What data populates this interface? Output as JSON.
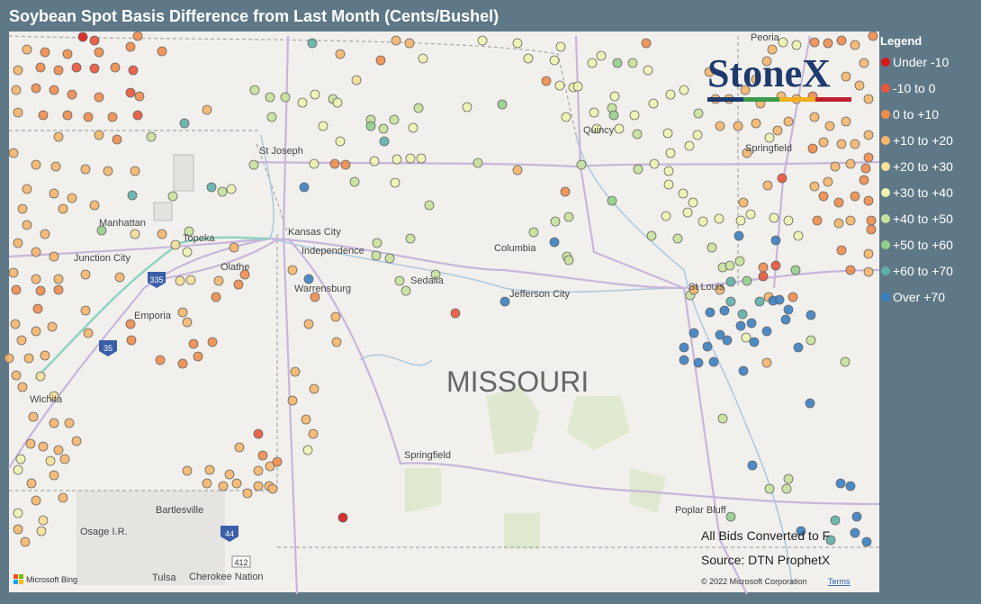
{
  "title": "Soybean Spot Basis Difference from Last Month (Cents/Bushel)",
  "legend": {
    "title": "Legend",
    "items": [
      {
        "label": "Under -10",
        "color": "#d7191c"
      },
      {
        "label": "-10 to 0",
        "color": "#e9553b"
      },
      {
        "label": "0 to +10",
        "color": "#f08c4c"
      },
      {
        "label": "+10 to +20",
        "color": "#f5b56c"
      },
      {
        "label": "+20 to +30",
        "color": "#f6df97"
      },
      {
        "label": "+30 to +40",
        "color": "#eef3b0"
      },
      {
        "label": "+40 to +50",
        "color": "#c6e29c"
      },
      {
        "label": "+50 to +60",
        "color": "#95cf8c"
      },
      {
        "label": "+60 to +70",
        "color": "#5fb0ab"
      },
      {
        "label": "Over +70",
        "color": "#3a7fc2"
      }
    ]
  },
  "map": {
    "state": "MISSOURI",
    "cities": [
      "St Joseph",
      "Manhattan",
      "Kansas City",
      "Independence",
      "Topeka",
      "Junction City",
      "Olathe",
      "Columbia",
      "Warrensburg",
      "Sedalia",
      "Jefferson City",
      "Emporia",
      "St Louis",
      "Wichita",
      "Springfield",
      "Bartlesville",
      "Osage I.R.",
      "Poplar Bluff",
      "Tulsa",
      "Cherokee Nation",
      "Quincy",
      "Springfield",
      "Peoria"
    ],
    "highways": [
      "335",
      "35",
      "44",
      "412"
    ]
  },
  "logo": "StoneX",
  "notes": [
    "All Bids Converted to F",
    "Source: DTN ProphetX"
  ],
  "copyright": "© 2022 Microsoft Corporation",
  "terms": "Terms",
  "bing": "Microsoft Bing"
}
